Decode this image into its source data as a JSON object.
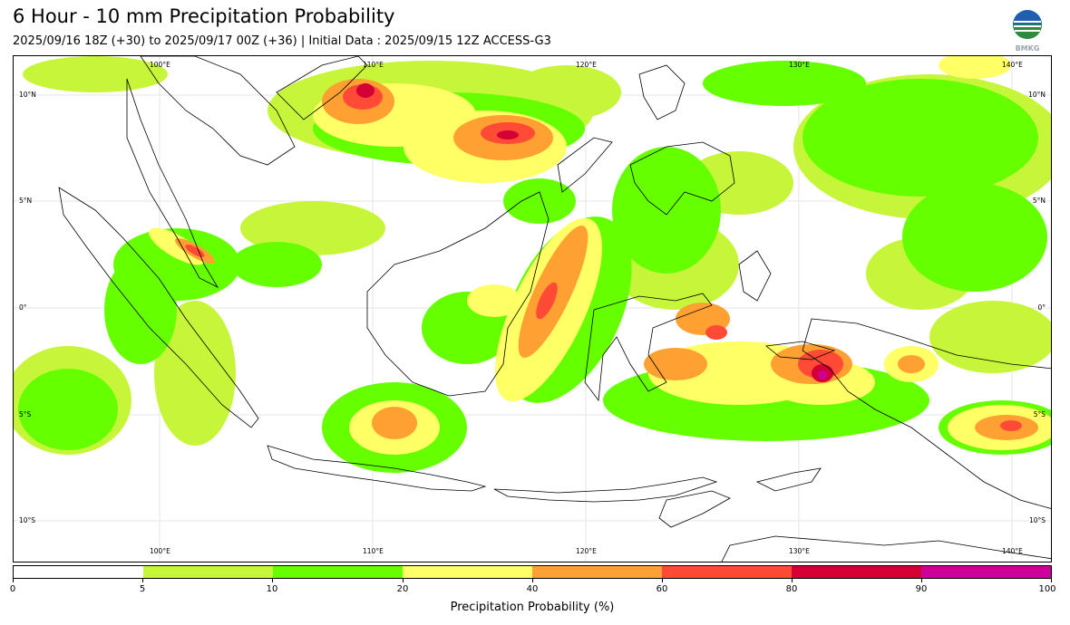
{
  "header": {
    "title": "6 Hour - 10 mm Precipitation Probability",
    "subtitle": "2025/09/16 18Z (+30) to 2025/09/17 00Z (+36) | Initial Data : 2025/09/15 12Z ACCESS-G3",
    "logo_text": "BMKG"
  },
  "map": {
    "lon_labels": [
      "100°E",
      "110°E",
      "120°E",
      "130°E",
      "140°E"
    ],
    "lat_labels": [
      "10°N",
      "5°N",
      "0°",
      "5°S",
      "10°S"
    ]
  },
  "colorbar": {
    "title": "Precipitation Probability (%)",
    "tick_labels": [
      "0",
      "5",
      "10",
      "20",
      "40",
      "60",
      "80",
      "90",
      "100"
    ],
    "colors": [
      "#ffffff",
      "#c6f53a",
      "#66ff00",
      "#ffff66",
      "#ffa033",
      "#ff4a35",
      "#d40035",
      "#cc0099"
    ]
  }
}
